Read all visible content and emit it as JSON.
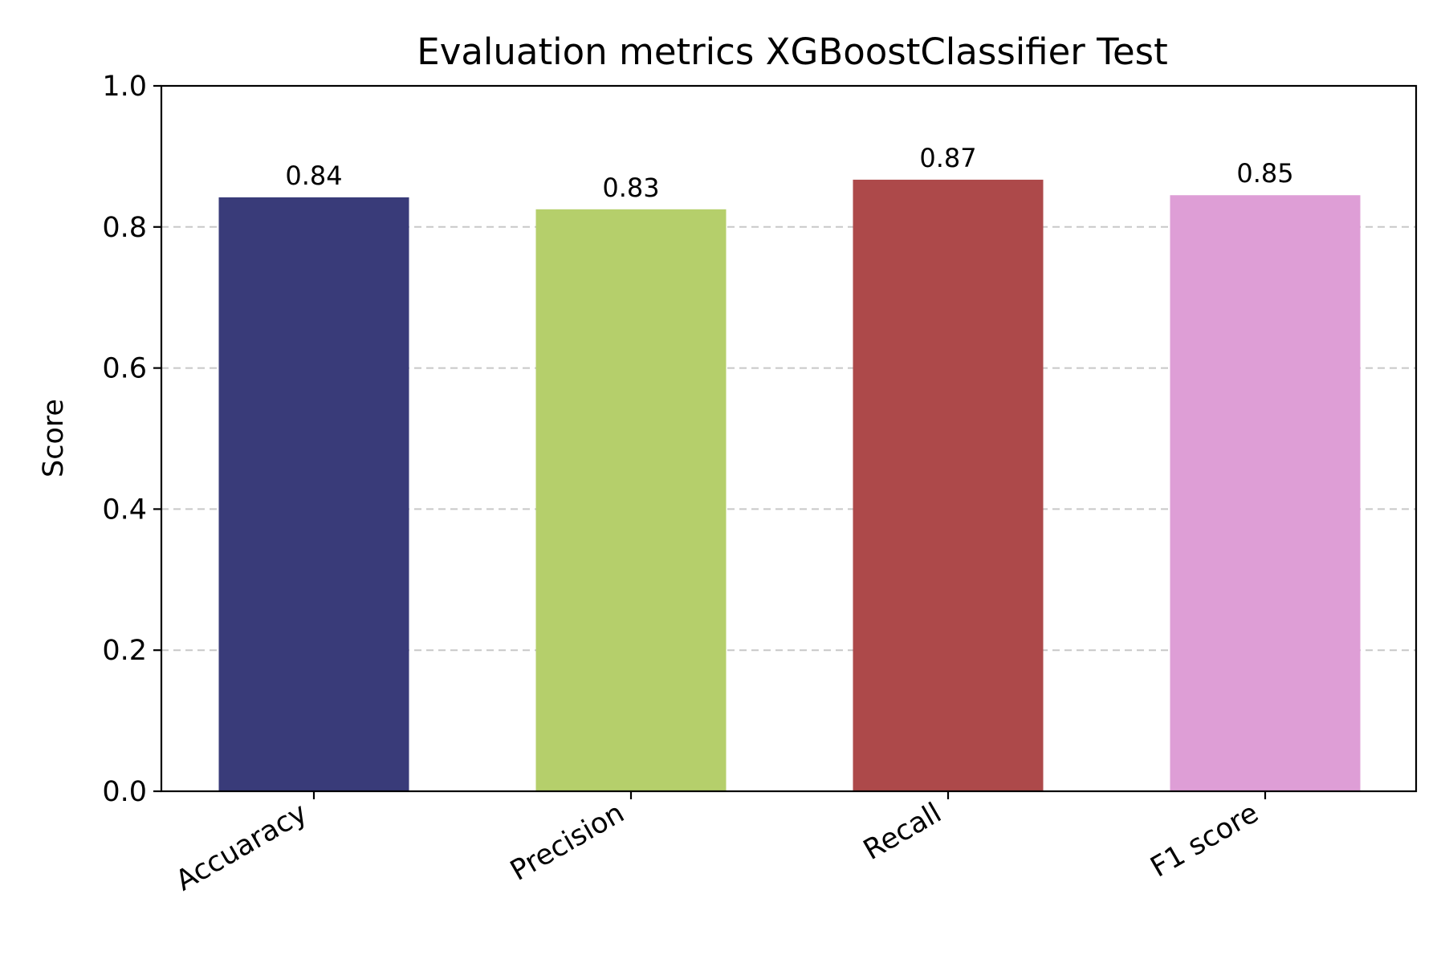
{
  "chart_data": {
    "type": "bar",
    "title": "Evaluation metrics XGBoostClassifier Test",
    "xlabel": "",
    "ylabel": "Score",
    "ylim": [
      0,
      1.0
    ],
    "yticks": [
      "0.0",
      "0.2",
      "0.4",
      "0.6",
      "0.8",
      "1.0"
    ],
    "grid": "y dashed",
    "categories": [
      "Accuaracy",
      "Precision",
      "Recall",
      "F1 score"
    ],
    "values": [
      0.842,
      0.825,
      0.867,
      0.845
    ],
    "value_labels": [
      "0.84",
      "0.83",
      "0.87",
      "0.85"
    ],
    "colors": [
      "#393b79",
      "#b5cf6b",
      "#ad494a",
      "#de9ed6"
    ]
  }
}
